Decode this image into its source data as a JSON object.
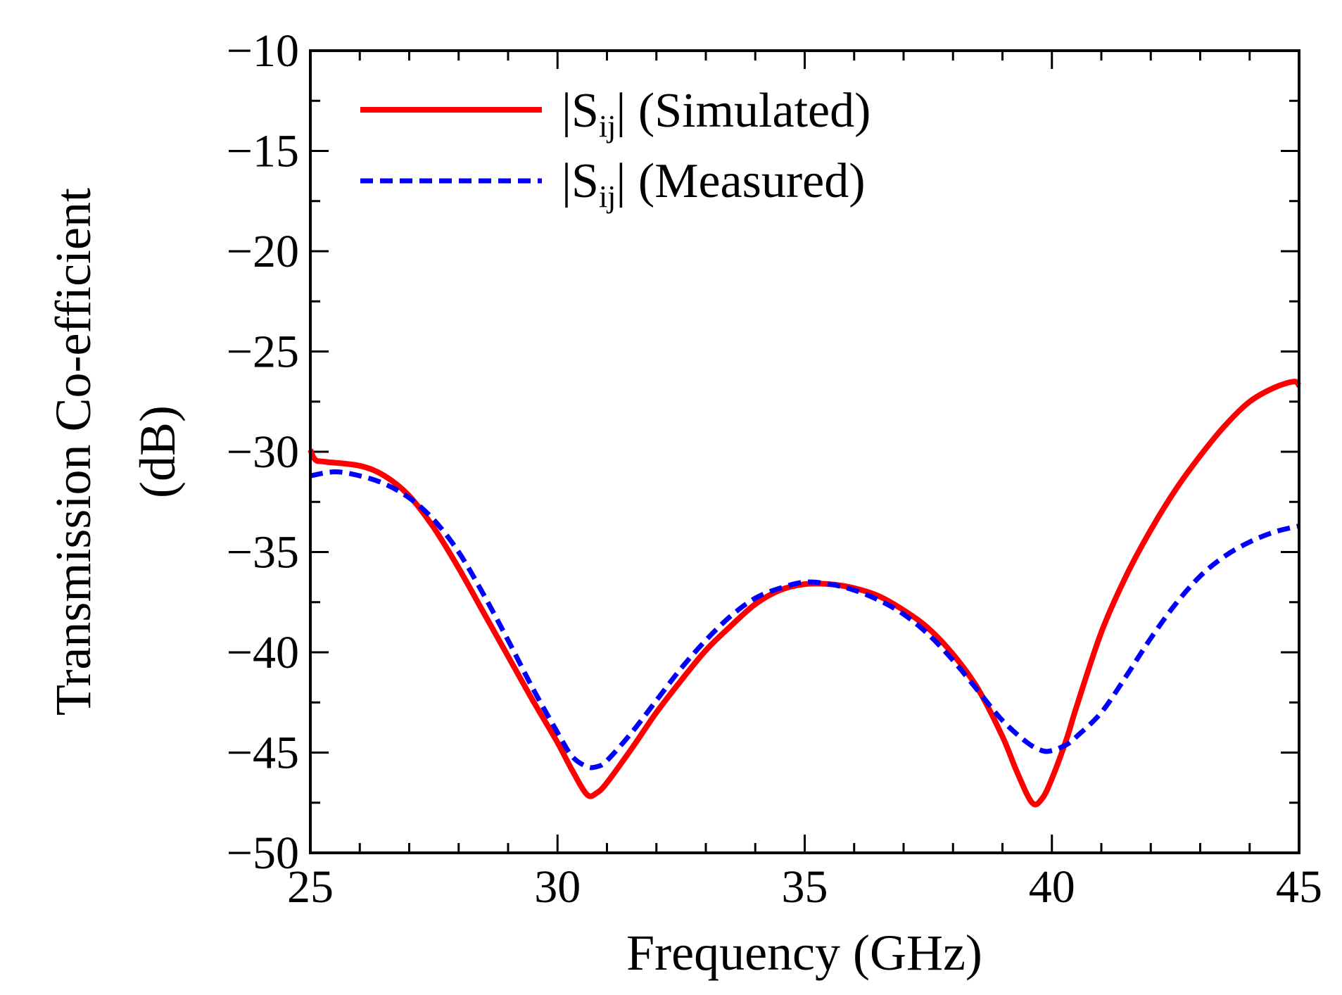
{
  "chart_data": {
    "type": "line",
    "title": "",
    "xlabel": "Frequency (GHz)",
    "ylabel_line1": "Transmission Co-efficient",
    "ylabel_line2": "(dB)",
    "xlim": [
      25,
      45
    ],
    "ylim": [
      -50,
      -10
    ],
    "xticks": [
      25,
      30,
      35,
      40,
      45
    ],
    "xtick_labels": [
      "25",
      "30",
      "35",
      "40",
      "45"
    ],
    "yticks": [
      -10,
      -15,
      -20,
      -25,
      -30,
      -35,
      -40,
      -45,
      -50
    ],
    "ytick_labels": [
      "−10",
      "−15",
      "−20",
      "−25",
      "−30",
      "−35",
      "−40",
      "−45",
      "−50"
    ],
    "x_minor_step": 1,
    "y_minor_step": 2.5,
    "grid": false,
    "legend_position": "top-left",
    "series": [
      {
        "name": "|Sij| (Simulated)",
        "legend_main": "|S",
        "legend_sub": "ij",
        "legend_tail": "| (Simulated)",
        "color": "#ff0000",
        "style": "solid",
        "x": [
          25.0,
          25.1,
          25.3,
          26.0,
          26.5,
          27.0,
          27.5,
          28.0,
          28.5,
          29.0,
          29.5,
          30.0,
          30.3,
          30.6,
          30.8,
          31.0,
          31.5,
          32.0,
          32.5,
          33.0,
          33.5,
          34.0,
          34.5,
          35.0,
          35.5,
          36.0,
          36.5,
          37.0,
          37.5,
          38.0,
          38.5,
          39.0,
          39.3,
          39.6,
          39.8,
          40.0,
          40.3,
          40.5,
          41.0,
          41.5,
          42.0,
          42.5,
          43.0,
          43.5,
          44.0,
          44.5,
          44.9,
          45.0
        ],
        "y": [
          -29.9,
          -30.4,
          -30.5,
          -30.7,
          -31.2,
          -32.2,
          -33.8,
          -35.8,
          -38.0,
          -40.2,
          -42.4,
          -44.5,
          -45.9,
          -47.1,
          -47.0,
          -46.5,
          -44.8,
          -43.0,
          -41.4,
          -39.9,
          -38.7,
          -37.6,
          -36.9,
          -36.6,
          -36.6,
          -36.8,
          -37.2,
          -37.9,
          -38.8,
          -40.1,
          -41.8,
          -44.2,
          -46.0,
          -47.5,
          -47.3,
          -46.3,
          -44.3,
          -42.7,
          -39.0,
          -36.2,
          -33.9,
          -31.9,
          -30.2,
          -28.7,
          -27.5,
          -26.8,
          -26.5,
          -26.7
        ]
      },
      {
        "name": "|Sij| (Measured)",
        "legend_main": "|S",
        "legend_sub": "ij",
        "legend_tail": "| (Measured)",
        "color": "#0000ff",
        "style": "dashed",
        "x": [
          25.0,
          25.5,
          26.0,
          26.5,
          27.0,
          27.5,
          28.0,
          28.5,
          29.0,
          29.5,
          30.0,
          30.3,
          30.6,
          30.8,
          31.0,
          31.5,
          32.0,
          32.5,
          33.0,
          33.5,
          34.0,
          34.5,
          35.0,
          35.5,
          36.0,
          36.5,
          37.0,
          37.5,
          38.0,
          38.5,
          39.0,
          39.5,
          39.8,
          40.0,
          40.3,
          40.5,
          41.0,
          41.5,
          42.0,
          42.5,
          43.0,
          43.5,
          44.0,
          44.5,
          45.0
        ],
        "y": [
          -31.2,
          -31.0,
          -31.2,
          -31.6,
          -32.3,
          -33.4,
          -35.0,
          -37.1,
          -39.4,
          -41.8,
          -44.0,
          -45.2,
          -45.7,
          -45.7,
          -45.4,
          -44.0,
          -42.4,
          -40.8,
          -39.4,
          -38.2,
          -37.3,
          -36.8,
          -36.5,
          -36.6,
          -36.9,
          -37.4,
          -38.1,
          -39.1,
          -40.4,
          -41.9,
          -43.4,
          -44.5,
          -44.9,
          -44.9,
          -44.6,
          -44.2,
          -43.0,
          -41.2,
          -39.3,
          -37.6,
          -36.2,
          -35.2,
          -34.5,
          -34.0,
          -33.7
        ]
      }
    ]
  }
}
